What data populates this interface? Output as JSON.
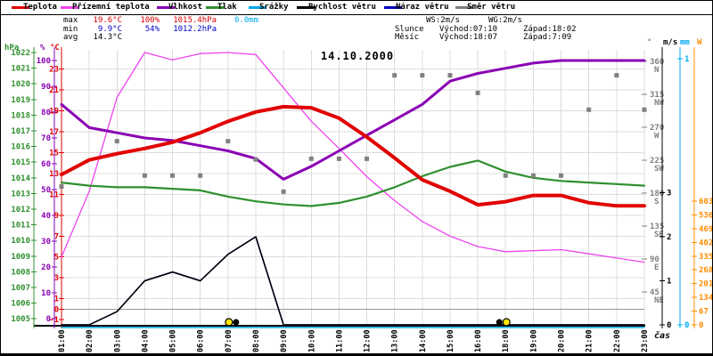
{
  "legend": {
    "items": [
      {
        "label": "Teplota",
        "color": "#e10000"
      },
      {
        "label": "Přízemní teplota",
        "color": "#ee44ee"
      },
      {
        "label": "Vlhkost",
        "color": "#8a00b4"
      },
      {
        "label": "Tlak",
        "color": "#2f8f2f"
      },
      {
        "label": "Srážky",
        "color": "#00a8ee"
      },
      {
        "label": "Rychlost větru",
        "color": "#000000"
      },
      {
        "label": "Náraz větru",
        "color": "#0000bb"
      },
      {
        "label": "Směr větru",
        "color": "#808080"
      }
    ]
  },
  "stats": {
    "max_label": "max",
    "max_temp": "19.6°C",
    "max_hum": "100%",
    "max_pres": "1015.4hPa",
    "max_precip": "0.0mm",
    "min_label": "min",
    "min_temp": "9.9°C",
    "min_hum": "54%",
    "min_pres": "1012.2hPa",
    "avg_label": "avg",
    "avg_temp": "14.3°C"
  },
  "wind_info": {
    "ws": "WS:2m/s",
    "wg": "WG:2m/s"
  },
  "astro": {
    "sun_label": "Slunce",
    "sun_rise": "Východ:07:10",
    "sun_set": "Západ:18:02",
    "moon_label": "Měsíc",
    "moon_rise": "Východ:18:07",
    "moon_set": "Západ:7:09"
  },
  "chart_data": {
    "type": "line",
    "title": "14.10.2000",
    "x_label": "čas",
    "categories": [
      "01:00",
      "02:00",
      "03:00",
      "04:00",
      "05:00",
      "06:00",
      "07:00",
      "08:00",
      "09:00",
      "10:00",
      "11:00",
      "12:00",
      "13:00",
      "14:00",
      "15:00",
      "16:00",
      "18:00",
      "19:00",
      "20:00",
      "21:00",
      "22:00",
      "23:00"
    ],
    "y_axes": {
      "pressure": {
        "unit": "hPa",
        "color": "#2f8f2f",
        "min": 1005,
        "max": 1022,
        "ticks": [
          1022,
          1021,
          1020,
          1019,
          1018,
          1017,
          1016,
          1015,
          1014,
          1013,
          1012,
          1011,
          1010,
          1009,
          1008,
          1007,
          1006,
          1005
        ]
      },
      "humidity": {
        "unit": "%",
        "color": "#8a00b4",
        "min": 0,
        "max": 100,
        "ticks": [
          100,
          90,
          80,
          70,
          60,
          50,
          40,
          30,
          20,
          10,
          0
        ]
      },
      "temperature": {
        "unit": "°C",
        "color": "#e10000",
        "min": -1,
        "max": 24,
        "ticks": [
          23,
          21,
          19,
          17,
          15,
          13,
          11,
          9,
          7,
          5,
          3,
          1,
          0,
          -1
        ]
      },
      "wind_direction": {
        "unit": "°",
        "color": "#808080",
        "min": 0,
        "max": 360,
        "ticks": [
          {
            "value": 360,
            "label": "N"
          },
          {
            "value": 315,
            "label": "NW"
          },
          {
            "value": 270,
            "label": "W"
          },
          {
            "value": 225,
            "label": "SW"
          },
          {
            "value": 180,
            "label": "S"
          },
          {
            "value": 135,
            "label": "SE"
          },
          {
            "value": 90,
            "label": "E"
          },
          {
            "value": 45,
            "label": "NE"
          }
        ]
      },
      "wind_speed": {
        "unit": "m/s",
        "color": "#000000",
        "min": 0,
        "max": 4,
        "ticks": [
          3,
          2,
          1,
          0
        ]
      },
      "precipitation": {
        "unit": "mm",
        "color": "#00a8ee",
        "min": 0,
        "max": 1,
        "ticks": [
          1,
          0
        ]
      },
      "radiation": {
        "unit": "W",
        "color": "#ff8c00",
        "min": 0,
        "max": 603,
        "ticks": [
          603,
          536,
          469,
          402,
          335,
          268,
          201,
          134,
          67,
          0
        ]
      }
    },
    "series": [
      {
        "name": "Srážky",
        "axis": "precipitation",
        "color": "#00a8ee",
        "values": [
          0,
          0,
          0,
          0,
          0,
          0,
          0,
          0,
          0,
          0,
          0,
          0,
          0,
          0,
          0,
          0,
          0,
          0,
          0,
          0,
          0,
          0
        ]
      },
      {
        "name": "Náraz větru",
        "axis": "wind_speed",
        "color": "#0000bb",
        "values": [
          0,
          0,
          0.3,
          1.0,
          1.2,
          1.0,
          1.6,
          2.0,
          0,
          0,
          0,
          0,
          0,
          0,
          0,
          0,
          0,
          0,
          0,
          0,
          0,
          0
        ]
      },
      {
        "name": "Rychlost větru",
        "axis": "wind_speed",
        "color": "#000000",
        "values": [
          0,
          0,
          0.3,
          1.0,
          1.2,
          1.0,
          1.6,
          2.0,
          0,
          0,
          0,
          0,
          0,
          0,
          0,
          0,
          0,
          0,
          0,
          0,
          0,
          0
        ]
      },
      {
        "name": "Přízemní teplota",
        "axis": "temperature",
        "color": "#ee44ee",
        "values": [
          5.0,
          11.3,
          20.3,
          24.6,
          23.9,
          24.5,
          24.6,
          24.4,
          21.2,
          18.0,
          15.4,
          12.7,
          10.4,
          8.4,
          7.0,
          6.0,
          5.5,
          5.6,
          5.7,
          5.3,
          4.9,
          4.5
        ]
      },
      {
        "name": "Tlak",
        "axis": "pressure",
        "color": "#2f8f2f",
        "values": [
          1013.7,
          1013.5,
          1013.4,
          1013.4,
          1013.3,
          1013.2,
          1012.8,
          1012.5,
          1012.3,
          1012.2,
          1012.4,
          1012.8,
          1013.4,
          1014.1,
          1014.7,
          1015.1,
          1014.4,
          1014.0,
          1013.8,
          1013.7,
          1013.6,
          1013.5
        ]
      },
      {
        "name": "Vlhkost",
        "axis": "humidity",
        "color": "#8a00b4",
        "values": [
          83,
          74,
          72,
          70,
          69,
          67,
          65,
          62,
          54,
          59,
          65,
          71,
          77,
          83,
          92,
          95,
          97,
          99,
          100,
          100,
          100,
          100
        ]
      },
      {
        "name": "Teplota",
        "axis": "temperature",
        "color": "#e10000",
        "values": [
          12.9,
          14.3,
          14.9,
          15.4,
          16.0,
          16.9,
          18.0,
          18.9,
          19.4,
          19.3,
          18.3,
          16.5,
          14.5,
          12.4,
          11.3,
          10.0,
          10.3,
          10.9,
          10.9,
          10.2,
          9.9,
          9.9
        ]
      },
      {
        "name": "Směr větru",
        "axis": "wind_direction",
        "color": "#808080",
        "style": "squares",
        "values": [
          189,
          null,
          251,
          204,
          204,
          204,
          251,
          226,
          182,
          227,
          227,
          227,
          341,
          341,
          341,
          317,
          204,
          204,
          204,
          294,
          341,
          294
        ]
      }
    ],
    "sun_moon_markers": [
      {
        "type": "sun",
        "hour": "07:00",
        "offset": 1
      },
      {
        "type": "moon",
        "hour": "07:00",
        "offset": 9
      },
      {
        "type": "moon",
        "hour": "18:00",
        "offset": -7
      },
      {
        "type": "sun",
        "hour": "18:00",
        "offset": 1
      }
    ]
  }
}
